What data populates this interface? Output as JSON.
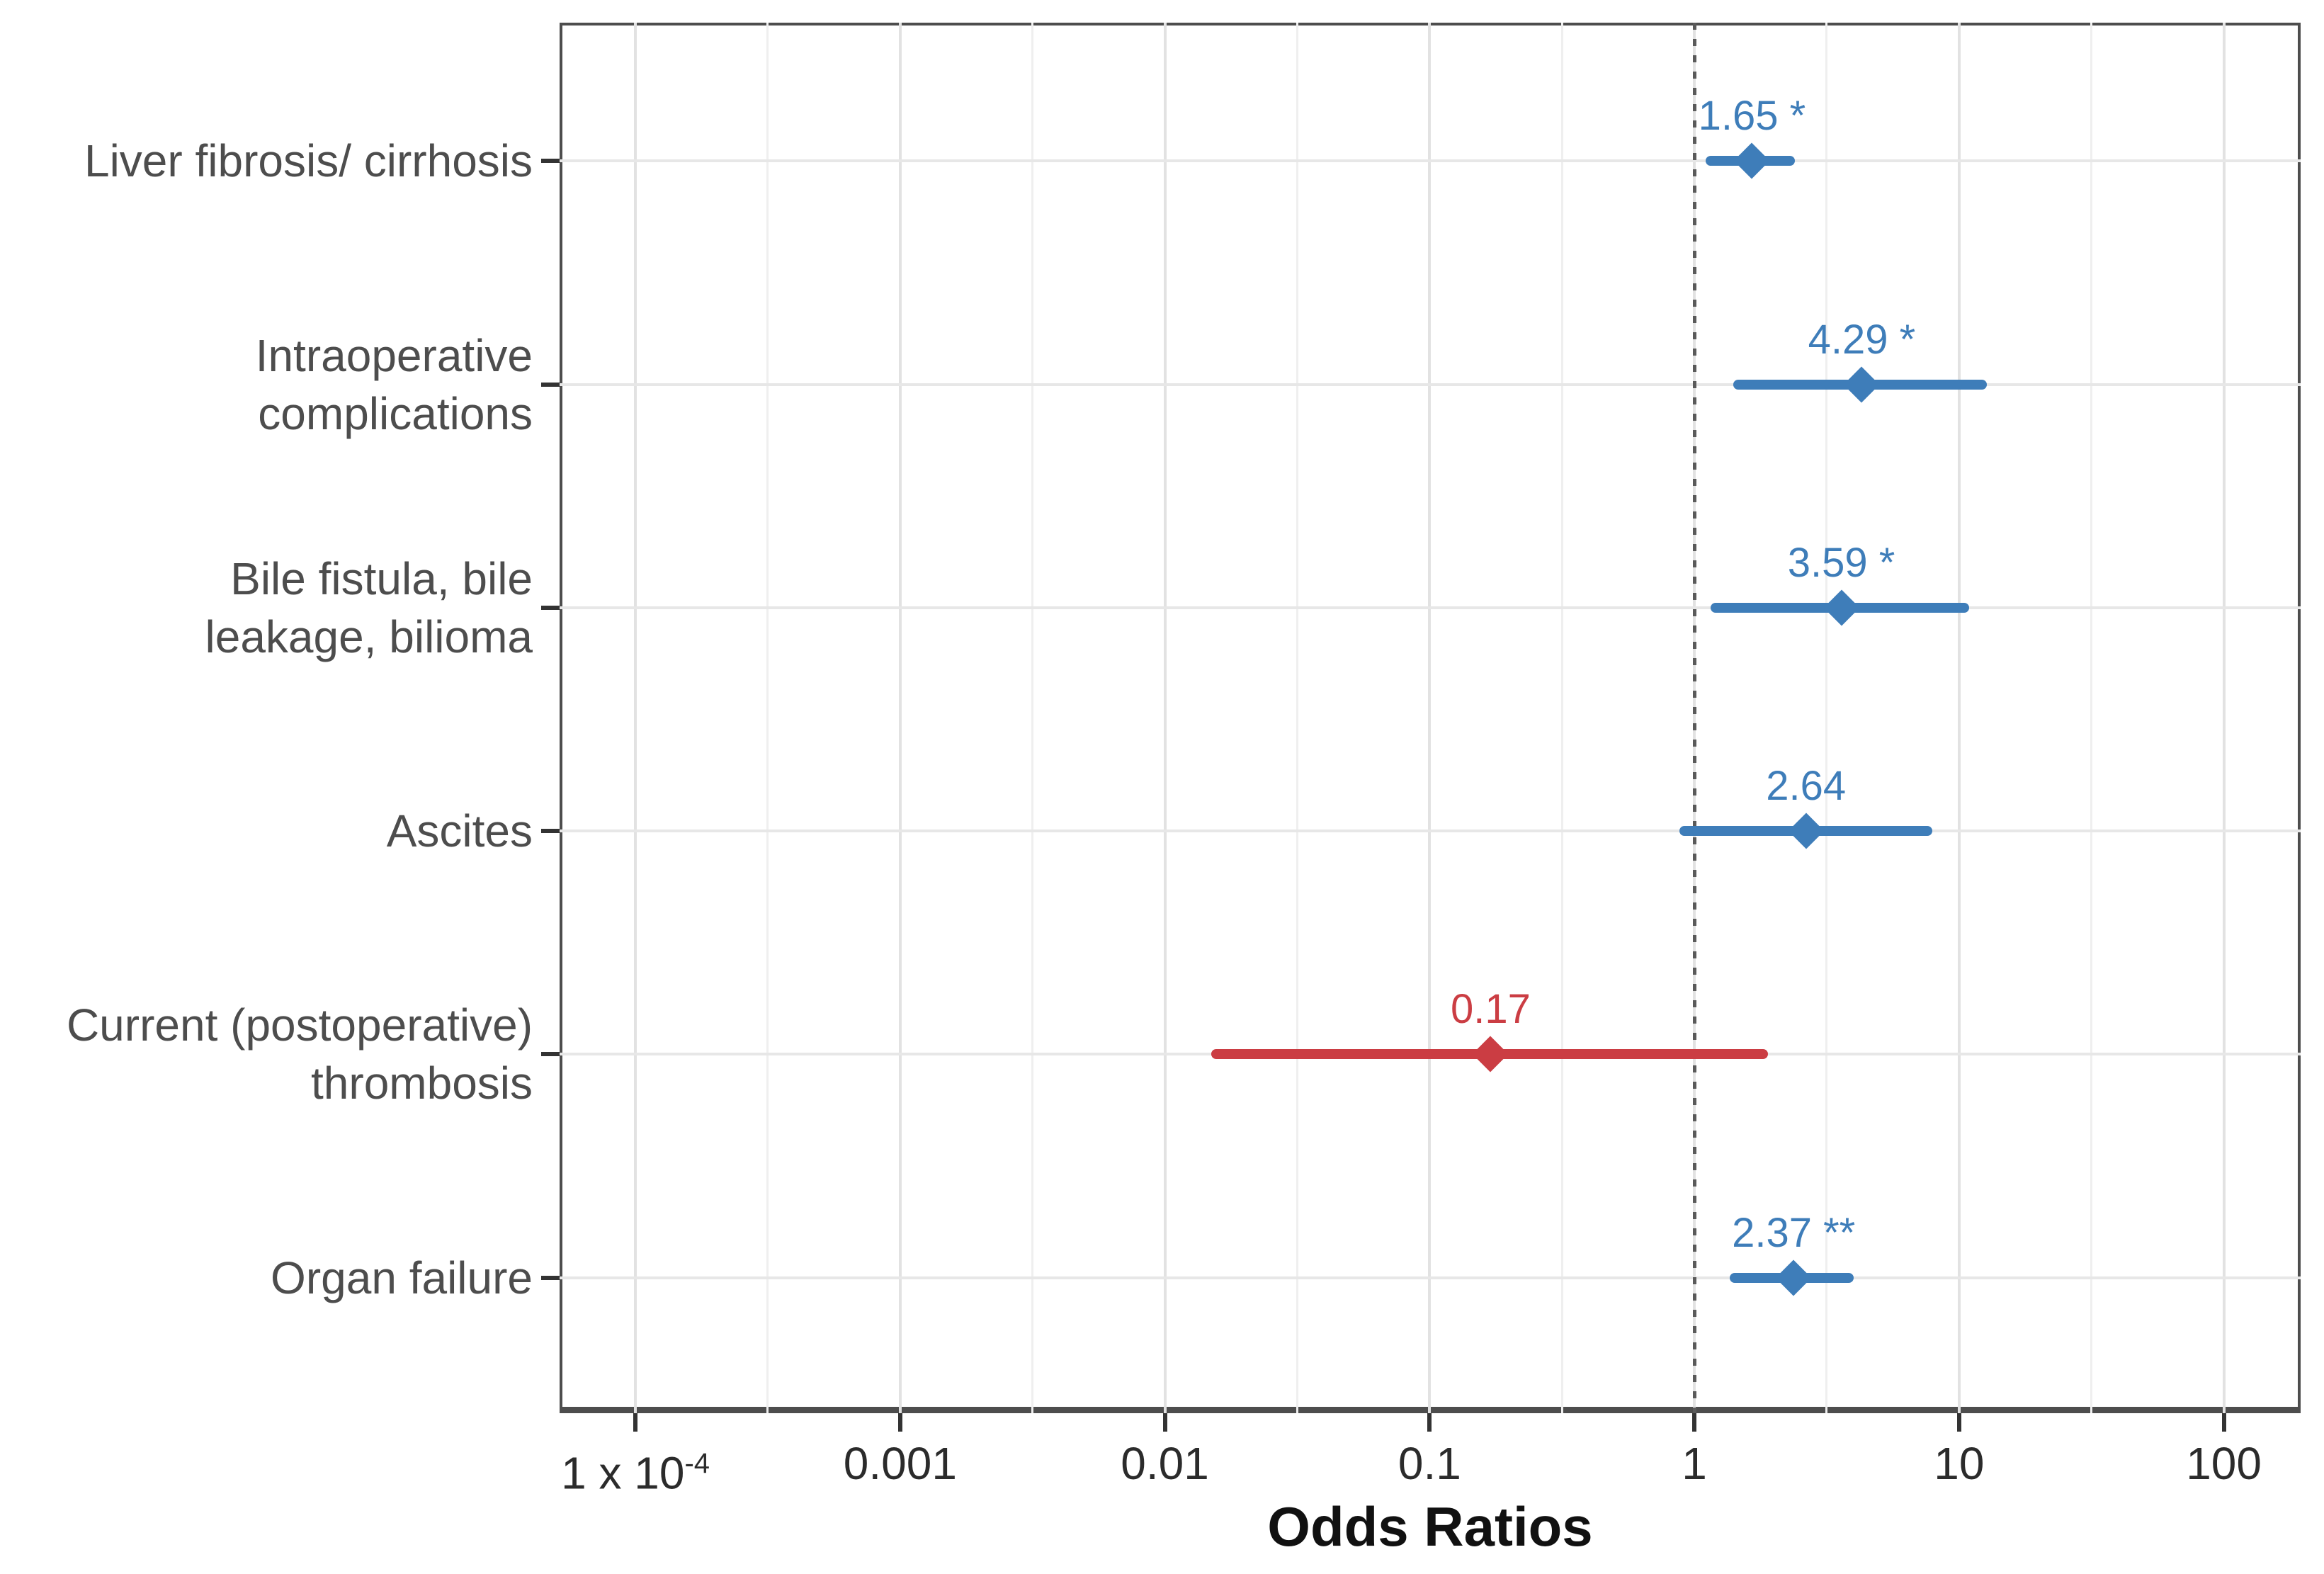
{
  "chart_data": {
    "type": "forest",
    "xlabel": "Odds Ratios",
    "x_scale": "log10",
    "xlim": [
      5.17e-05,
      195
    ],
    "grid": true,
    "reference_line": 1,
    "x_ticks": [
      {
        "label": "1 x 10",
        "sup": "-4",
        "value": 0.0001
      },
      {
        "label": "0.001",
        "value": 0.001
      },
      {
        "label": "0.01",
        "value": 0.01
      },
      {
        "label": "0.1",
        "value": 0.1
      },
      {
        "label": "1",
        "value": 1
      },
      {
        "label": "10",
        "value": 10
      },
      {
        "label": "100",
        "value": 100
      }
    ],
    "x_minor_ticks": [
      0.00031623,
      0.0031623,
      0.031623,
      0.31623,
      3.1623,
      31.623
    ],
    "rows": [
      {
        "category": "Liver fibrosis/ cirrhosis",
        "category_lines": [
          "Liver fibrosis/ cirrhosis"
        ],
        "or": 1.65,
        "ci_low": 1.1,
        "ci_high": 2.4,
        "value_label": "1.65 *",
        "significance": "*",
        "color": "blue"
      },
      {
        "category": "Intraoperative complications",
        "category_lines": [
          "Intraoperative",
          "complications"
        ],
        "or": 4.29,
        "ci_low": 1.4,
        "ci_high": 12.7,
        "value_label": "4.29 *",
        "significance": "*",
        "color": "blue"
      },
      {
        "category": "Bile fistula, bile leakage, bilioma",
        "category_lines": [
          "Bile fistula, bile",
          "leakage, bilioma"
        ],
        "or": 3.59,
        "ci_low": 1.15,
        "ci_high": 10.9,
        "value_label": "3.59 *",
        "significance": "*",
        "color": "blue"
      },
      {
        "category": "Ascites",
        "category_lines": [
          "Ascites"
        ],
        "or": 2.64,
        "ci_low": 0.88,
        "ci_high": 7.9,
        "value_label": "2.64",
        "significance": "",
        "color": "blue"
      },
      {
        "category": "Current (postoperative) thrombosis",
        "category_lines": [
          "Current (postoperative)",
          "thrombosis"
        ],
        "or": 0.17,
        "ci_low": 0.015,
        "ci_high": 1.9,
        "value_label": "0.17",
        "significance": "",
        "color": "red"
      },
      {
        "category": "Organ failure",
        "category_lines": [
          "Organ failure"
        ],
        "or": 2.37,
        "ci_low": 1.36,
        "ci_high": 4.0,
        "value_label": "2.37 **",
        "significance": "**",
        "color": "blue"
      }
    ],
    "colors": {
      "blue": "#3e7db9",
      "red": "#cb3d43",
      "grid_major": "#e2e2e2",
      "grid_minor": "#efefef",
      "axis_border": "#4d4d4d",
      "tick": "#333333",
      "y_label_text": "#4d4d4d",
      "x_label_text": "#2b2b2b",
      "reference_line": "#5a5a5a"
    }
  }
}
